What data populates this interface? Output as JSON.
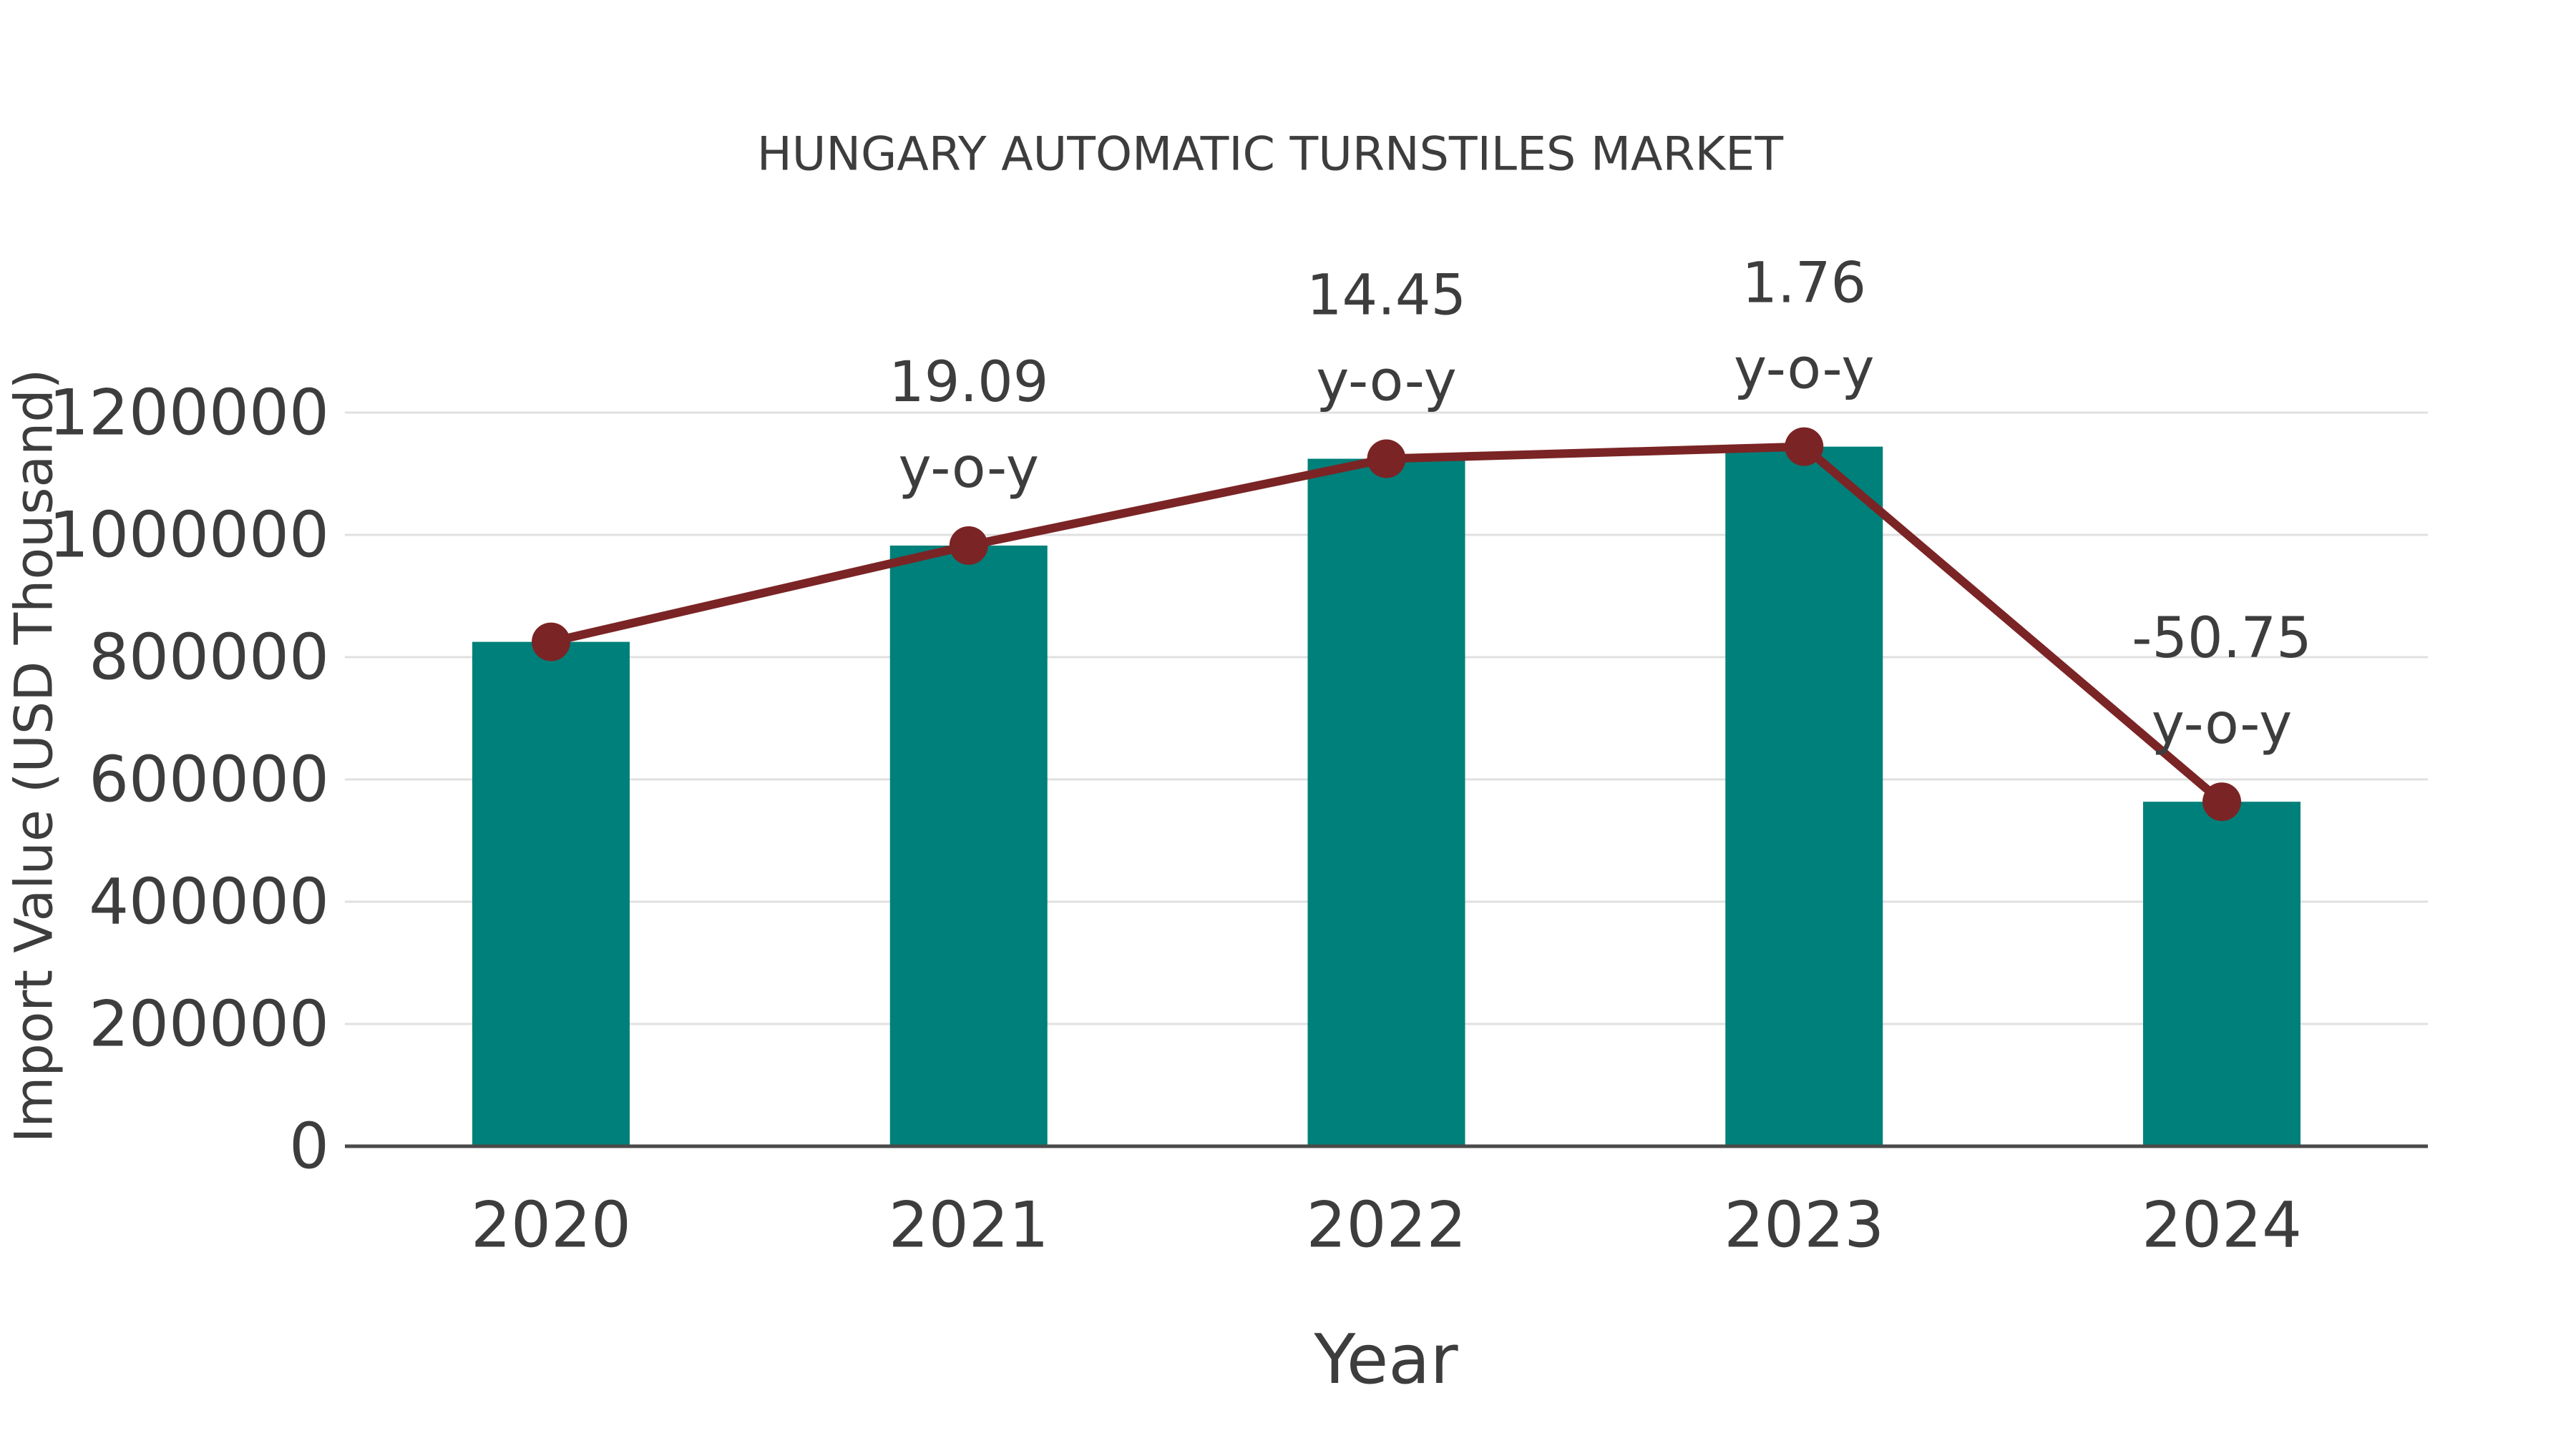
{
  "page": {
    "background": "#ffffff"
  },
  "colors": {
    "bar_teal": "#00807a",
    "line_maroon": "#7b2425",
    "text_gray": "#3d3d3d",
    "grid_gray": "#e0e0e0",
    "axis_gray": "#4a4a4a"
  },
  "chart_data": {
    "type": "bar",
    "subtype": "bar-with-line-overlay",
    "title": "HUNGARY AUTOMATIC TURNSTILES MARKET",
    "xlabel": "Year",
    "ylabel": "Import Value (USD Thousand)",
    "categories": [
      "2020",
      "2021",
      "2022",
      "2023",
      "2024"
    ],
    "series": [
      {
        "name": "Import Value (USD Thousand)",
        "type": "bar",
        "color": "#00807a",
        "values": [
          825000,
          982500,
          1124500,
          1144300,
          563500
        ]
      },
      {
        "name": "y-o-y growth (%)",
        "type": "line",
        "color": "#7b2425",
        "values_percent": [
          null,
          19.09,
          14.45,
          1.76,
          -50.75
        ],
        "plotted_at": [
          825000,
          982500,
          1124500,
          1144300,
          563500
        ]
      }
    ],
    "annotations": [
      {
        "category": "2021",
        "value": "19.09",
        "suffix": "y-o-y"
      },
      {
        "category": "2022",
        "value": "14.45",
        "suffix": "y-o-y"
      },
      {
        "category": "2023",
        "value": "1.76",
        "suffix": "y-o-y"
      },
      {
        "category": "2024",
        "value": "-50.75",
        "suffix": "y-o-y"
      }
    ],
    "ylim": [
      0,
      1200000
    ],
    "yticks": [
      0,
      200000,
      400000,
      600000,
      800000,
      1000000,
      1200000
    ],
    "grid": "horizontal",
    "legend": "none"
  }
}
